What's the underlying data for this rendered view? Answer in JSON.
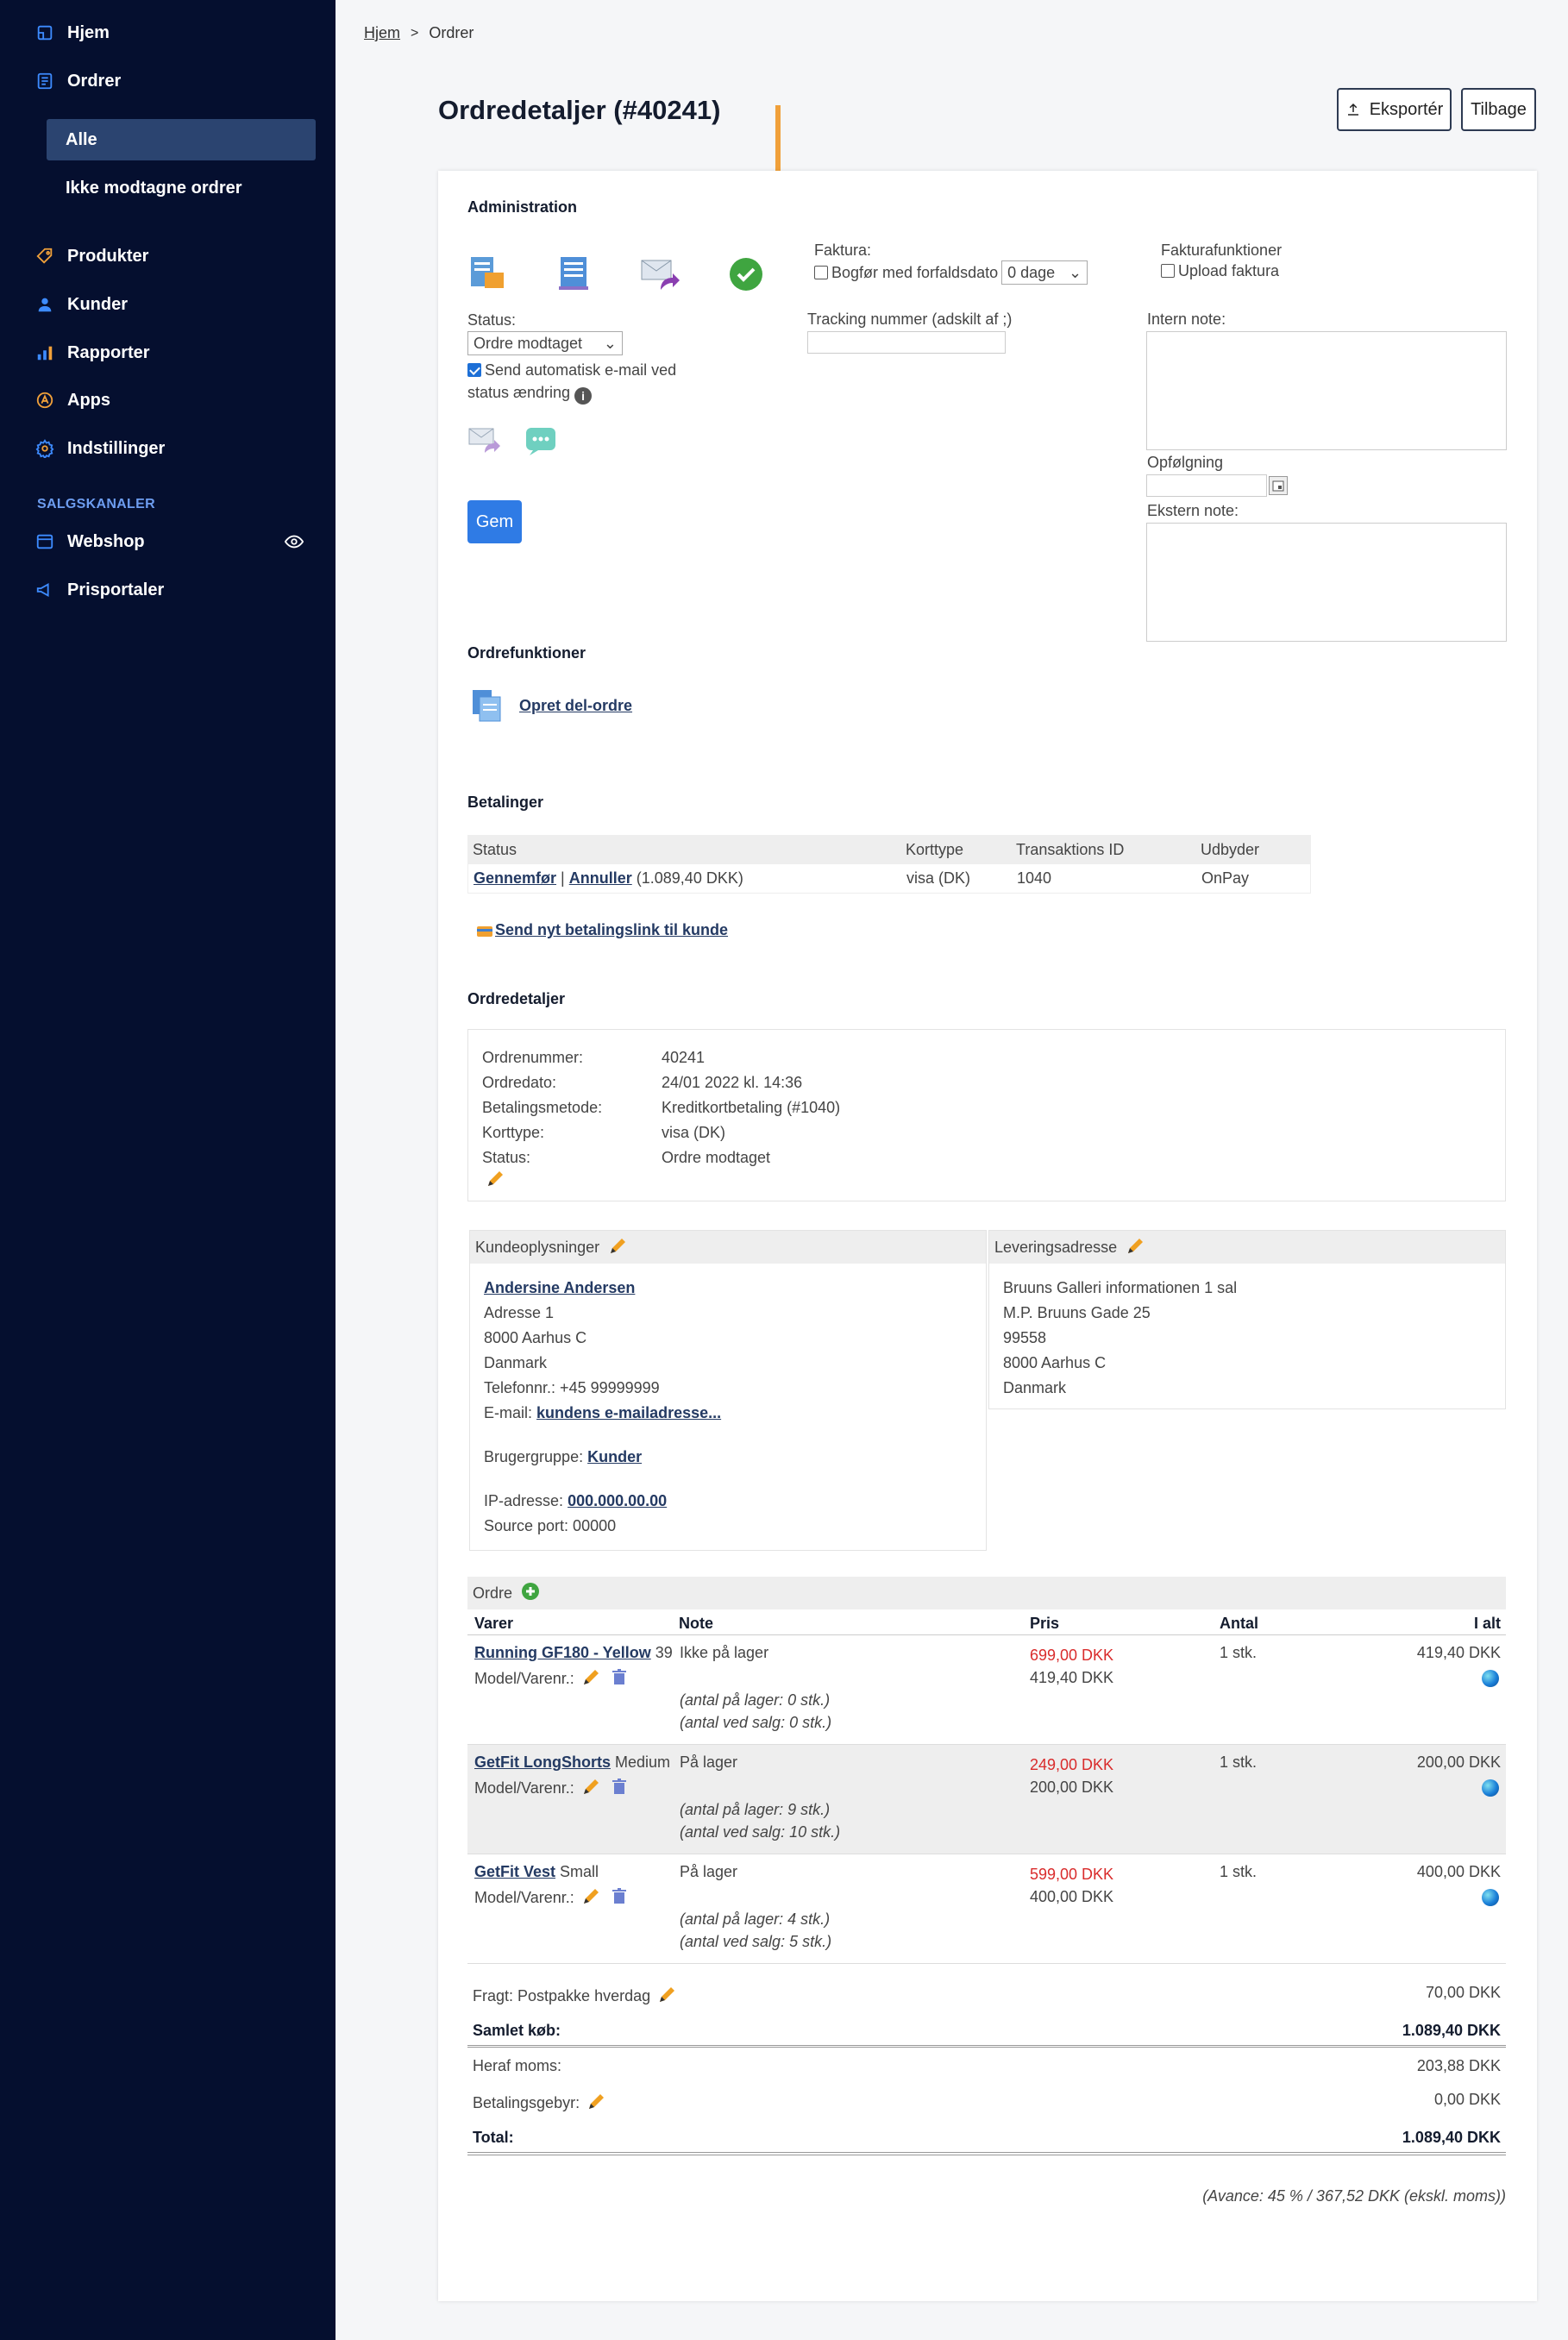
{
  "sidebar": {
    "items": [
      {
        "label": "Hjem",
        "icon": "home-icon"
      },
      {
        "label": "Ordrer",
        "icon": "orders-icon"
      },
      {
        "label": "Produkter",
        "icon": "tag-icon"
      },
      {
        "label": "Kunder",
        "icon": "user-icon"
      },
      {
        "label": "Rapporter",
        "icon": "bar-chart-icon"
      },
      {
        "label": "Apps",
        "icon": "apps-icon"
      },
      {
        "label": "Indstillinger",
        "icon": "gear-icon"
      }
    ],
    "sub_items": [
      "Alle",
      "Ikke modtagne ordrer"
    ],
    "section_label": "SALGSKANALER",
    "channels": [
      {
        "label": "Webshop",
        "icon": "webshop-icon"
      },
      {
        "label": "Prisportaler",
        "icon": "megaphone-icon"
      }
    ]
  },
  "breadcrumb": {
    "home": "Hjem",
    "separator": ">",
    "current": "Ordrer"
  },
  "page_title": "Ordredetaljer (#40241)",
  "toolbar": {
    "export_label": "Eksportér",
    "back_label": "Tilbage"
  },
  "administration": {
    "heading": "Administration",
    "status_label": "Status:",
    "status_value": "Ordre modtaget",
    "auto_email_line1": "Send automatisk e-mail ved",
    "auto_email_line2": "status ændring",
    "save_label": "Gem",
    "faktura_label": "Faktura:",
    "book_label": "Bogfør med forfaldsdato",
    "days_value": "0 dage",
    "invoice_functions_label": "Fakturafunktioner",
    "upload_label": "Upload faktura",
    "tracking_label": "Tracking nummer (adskilt af ;)",
    "internal_note_label": "Intern note:",
    "followup_label": "Opfølgning",
    "external_note_label": "Ekstern note:"
  },
  "order_functions": {
    "heading": "Ordrefunktioner",
    "create_suborder": "Opret del-ordre"
  },
  "payments": {
    "heading": "Betalinger",
    "columns": [
      "Status",
      "Korttype",
      "Transaktions ID",
      "Udbyder"
    ],
    "row": {
      "complete": "Gennemfør",
      "separator": "|",
      "cancel": "Annuller",
      "amount": "(1.089,40 DKK)",
      "card_type": "visa (DK)",
      "transaction_id": "1040",
      "provider": "OnPay"
    },
    "send_link": "Send nyt betalingslink til kunde"
  },
  "order_details": {
    "heading": "Ordredetaljer",
    "fields": [
      {
        "label": "Ordrenummer:",
        "value": "40241"
      },
      {
        "label": "Ordredato:",
        "value": "24/01 2022 kl. 14:36"
      },
      {
        "label": "Betalingsmetode:",
        "value": "Kreditkortbetaling (#1040)"
      },
      {
        "label": "Korttype:",
        "value": "visa (DK)"
      },
      {
        "label": "Status:",
        "value": "Ordre modtaget"
      }
    ]
  },
  "customer": {
    "heading": "Kundeoplysninger",
    "name": "Andersine Andersen",
    "address1": "Adresse 1",
    "city": "8000 Aarhus C",
    "country": "Danmark",
    "phone": "Telefonnr.: +45 99999999",
    "email_label": "E-mail:",
    "email": "kundens e-mailadresse...",
    "group_label": "Brugergruppe:",
    "group": "Kunder",
    "ip_label": "IP-adresse:",
    "ip": "000.000.00.00",
    "source_port": "Source port: 00000"
  },
  "delivery": {
    "heading": "Leveringsadresse",
    "lines": [
      "Bruuns Galleri informationen 1 sal",
      "M.P. Bruuns Gade 25",
      "99558",
      "8000 Aarhus C",
      "Danmark"
    ]
  },
  "order": {
    "heading": "Ordre",
    "columns": [
      "Varer",
      "Note",
      "Pris",
      "Antal",
      "I alt"
    ],
    "model_label": "Model/Varenr.:",
    "items": [
      {
        "name": "Running GF180 - Yellow",
        "variant": "39",
        "note": "Ikke på lager",
        "stock": "(antal på lager: 0 stk.)",
        "sold": "(antal ved salg: 0 stk.)",
        "price_orig": "699,00 DKK",
        "price": "419,40 DKK",
        "qty": "1 stk.",
        "total": "419,40 DKK"
      },
      {
        "name": "GetFit LongShorts",
        "variant": "Medium",
        "note": "På lager",
        "stock": "(antal på lager: 9 stk.)",
        "sold": "(antal ved salg: 10 stk.)",
        "price_orig": "249,00 DKK",
        "price": "200,00 DKK",
        "qty": "1 stk.",
        "total": "200,00 DKK"
      },
      {
        "name": "GetFit Vest",
        "variant": "Small",
        "note": "På lager",
        "stock": "(antal på lager: 4 stk.)",
        "sold": "(antal ved salg: 5 stk.)",
        "price_orig": "599,00 DKK",
        "price": "400,00 DKK",
        "qty": "1 stk.",
        "total": "400,00 DKK"
      }
    ],
    "shipping_label": "Fragt: Postpakke hverdag",
    "shipping_value": "70,00 DKK",
    "sum_label": "Samlet køb:",
    "sum_value": "1.089,40 DKK",
    "vat_label": "Heraf moms:",
    "vat_value": "203,88 DKK",
    "fee_label": "Betalingsgebyr:",
    "fee_value": "0,00 DKK",
    "total_label": "Total:",
    "total_value": "1.089,40 DKK",
    "margin": "(Avance: 45 % / 367,52 DKK (ekskl. moms))"
  },
  "colors": {
    "sidebar_bg": "#050f2f",
    "sidebar_active": "#2b4470",
    "accent": "#2f7be5",
    "arrow": "#f0a03a",
    "price_red": "#d92b2b"
  }
}
